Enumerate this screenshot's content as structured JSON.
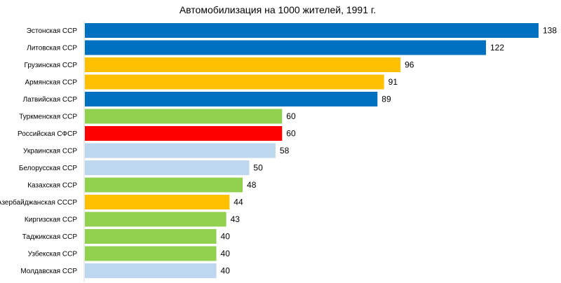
{
  "chart_data": {
    "type": "bar",
    "orientation": "horizontal",
    "title": "Автомобилизация на 1000 жителей, 1991 г.",
    "xlabel": "",
    "ylabel": "",
    "xlim": [
      0,
      138
    ],
    "grid": false,
    "legend": "none",
    "categories": [
      "Эстонская ССР",
      "Литовская ССР",
      "Грузинская ССР",
      "Армянская ССР",
      "Латвийская ССР",
      "Туркменская ССР",
      "Российская СФСР",
      "Украинская ССР",
      "Белорусская ССР",
      "Казахская ССР",
      "Азербайджанская СССР",
      "Киргизская ССР",
      "Таджикская ССР",
      "Узбекская ССР",
      "Молдавская ССР"
    ],
    "values": [
      138,
      122,
      96,
      91,
      89,
      60,
      60,
      58,
      50,
      48,
      44,
      43,
      40,
      40,
      40
    ],
    "colors": [
      "#0070C0",
      "#0070C0",
      "#FFC000",
      "#FFC000",
      "#0070C0",
      "#92D050",
      "#FF0000",
      "#BDD7EE",
      "#BDD7EE",
      "#92D050",
      "#FFC000",
      "#92D050",
      "#92D050",
      "#92D050",
      "#BDD7EE"
    ]
  }
}
